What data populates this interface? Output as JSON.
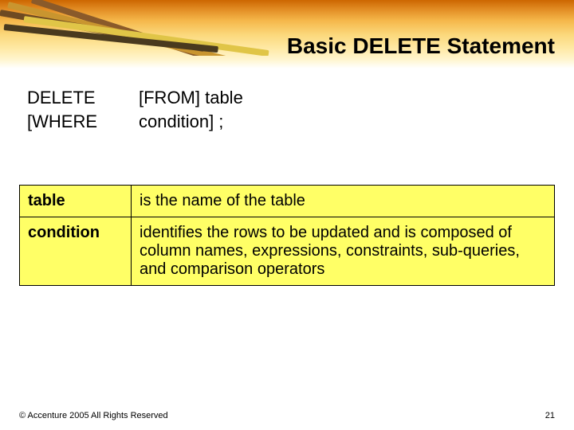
{
  "slide": {
    "title": "Basic DELETE Statement",
    "page_number": "21",
    "footer": "© Accenture 2005 All Rights Reserved"
  },
  "syntax": {
    "col1_row1": "DELETE",
    "col2_row1": "[FROM] table",
    "col1_row2": "[WHERE",
    "col2_row2": "condition] ;"
  },
  "definitions": {
    "rows": [
      {
        "term": "table",
        "desc": "is the name of the table"
      },
      {
        "term": "condition",
        "desc": "identifies the rows to be updated and is composed of column names, expressions, constraints, sub-queries, and comparison operators"
      }
    ]
  },
  "style": {
    "title_fontsize": 28,
    "body_fontsize": 22,
    "table_fontsize": 20,
    "footer_fontsize": 11,
    "title_color": "#000000",
    "text_color": "#000000",
    "table_bg": "#ffff66",
    "table_border": "#000000",
    "page_bg": "#ffffff",
    "banner_gradient": [
      "#cc6600",
      "#e08820",
      "#f5b74a",
      "#fbd77a",
      "#ffeaa8",
      "#fff6d2",
      "#ffffff"
    ]
  }
}
